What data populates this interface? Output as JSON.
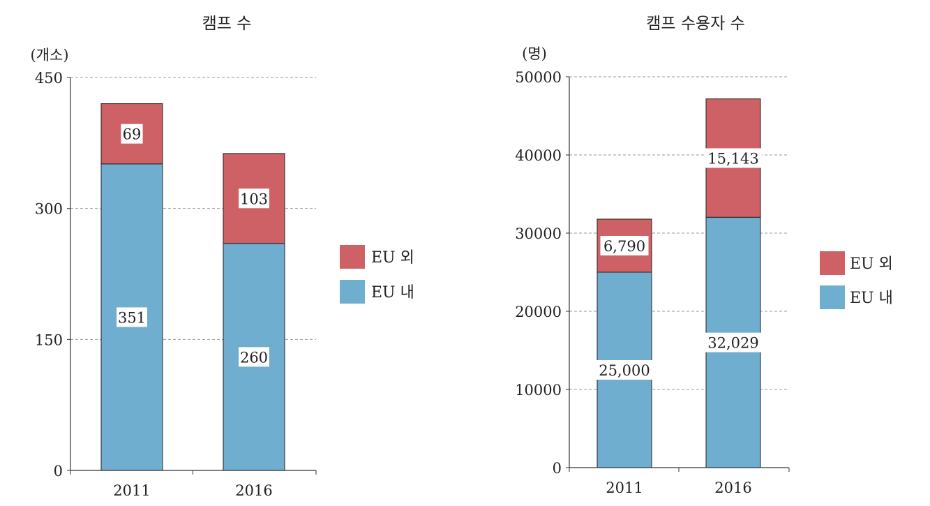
{
  "colors": {
    "inside_eu": "#70aed0",
    "outside_eu": "#cd6166",
    "grid": "#999999",
    "axis": "#333333"
  },
  "chart_data": [
    {
      "type": "bar",
      "stacked": true,
      "title": "캠프 수",
      "unit_label": "(개소)",
      "categories": [
        "2011",
        "2016"
      ],
      "series": [
        {
          "name": "EU 내",
          "values": [
            351,
            260
          ],
          "labels": [
            "351",
            "260"
          ]
        },
        {
          "name": "EU 외",
          "values": [
            69,
            103
          ],
          "labels": [
            "69",
            "103"
          ]
        }
      ],
      "ylim": [
        0,
        450
      ],
      "yticks": [
        0,
        150,
        300,
        450
      ],
      "ytick_labels": [
        "0",
        "150",
        "300",
        "450"
      ],
      "grid": true,
      "legend": "right"
    },
    {
      "type": "bar",
      "stacked": true,
      "title": "캠프 수용자 수",
      "unit_label": "(명)",
      "categories": [
        "2011",
        "2016"
      ],
      "series": [
        {
          "name": "EU 내",
          "values": [
            25000,
            32029
          ],
          "labels": [
            "25,000",
            "32,029"
          ]
        },
        {
          "name": "EU 외",
          "values": [
            6790,
            15143
          ],
          "labels": [
            "6,790",
            "15,143"
          ]
        }
      ],
      "ylim": [
        0,
        50000
      ],
      "yticks": [
        0,
        10000,
        20000,
        30000,
        40000,
        50000
      ],
      "ytick_labels": [
        "0",
        "10000",
        "20000",
        "30000",
        "40000",
        "50000"
      ],
      "grid": true,
      "legend": "right"
    }
  ]
}
